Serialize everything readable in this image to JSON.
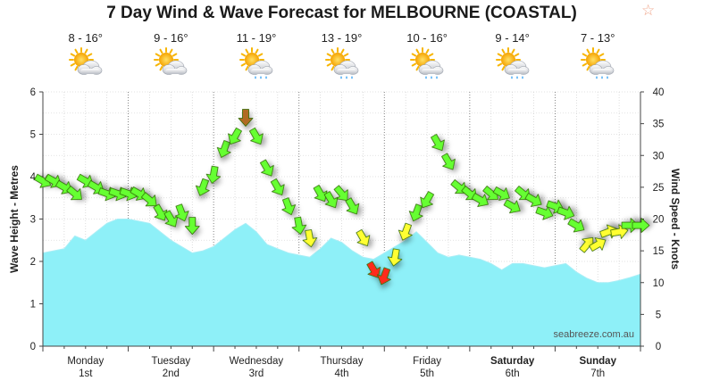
{
  "title": "7 Day Wind & Wave Forecast for MELBOURNE (COASTAL)",
  "star_icon": "star-outline-icon",
  "days": [
    {
      "name": "Monday",
      "date": "1st",
      "temp": "8 - 16°",
      "icon": "partly-cloudy-icon",
      "bold": false
    },
    {
      "name": "Tuesday",
      "date": "2nd",
      "temp": "9 - 16°",
      "icon": "partly-cloudy-icon",
      "bold": false
    },
    {
      "name": "Wednesday",
      "date": "3rd",
      "temp": "11 - 19°",
      "icon": "showers-icon",
      "bold": false
    },
    {
      "name": "Thursday",
      "date": "4th",
      "temp": "13 - 19°",
      "icon": "showers-icon",
      "bold": false
    },
    {
      "name": "Friday",
      "date": "5th",
      "temp": "10 - 16°",
      "icon": "showers-icon",
      "bold": false
    },
    {
      "name": "Saturday",
      "date": "6th",
      "temp": "9 - 14°",
      "icon": "showers-icon",
      "bold": true
    },
    {
      "name": "Sunday",
      "date": "7th",
      "temp": "7 - 13°",
      "icon": "showers-icon",
      "bold": true
    }
  ],
  "watermark": "seabreeze.com.au",
  "colors": {
    "wave_fill": "#8ef0f8",
    "wave_line": "#a8eef6",
    "wind_light": "#66ff33",
    "wind_moderate": "#ffff33",
    "wind_strong": "#ff2a1a",
    "wind_peak": "#b06a20"
  },
  "chart_data": {
    "type": "area",
    "title": "7 Day Wind & Wave Forecast for MELBOURNE (COASTAL)",
    "x_unit": "hours",
    "xlim": [
      0,
      168
    ],
    "left_axis": {
      "label": "Wave Height - Metres",
      "ticks": [
        "0",
        "1",
        "2",
        "3",
        "4",
        "5",
        "6"
      ],
      "ylim": [
        0,
        6
      ]
    },
    "right_axis": {
      "label": "Wind Speed - Knots",
      "ticks": [
        "0",
        "5",
        "10",
        "15",
        "20",
        "25",
        "30",
        "35",
        "40"
      ],
      "ylim": [
        0,
        40
      ]
    },
    "series": [
      {
        "name": "Wave Height",
        "unit": "m",
        "x": [
          0,
          6,
          9,
          12,
          15,
          18,
          21,
          24,
          30,
          33,
          36,
          42,
          45,
          48,
          54,
          57,
          60,
          63,
          66,
          69,
          72,
          75,
          78,
          81,
          84,
          87,
          90,
          93,
          96,
          99,
          102,
          105,
          108,
          111,
          114,
          117,
          120,
          123,
          126,
          129,
          132,
          135,
          138,
          141,
          144,
          147,
          150,
          153,
          156,
          159,
          162,
          165,
          168
        ],
        "values": [
          2.2,
          2.3,
          2.6,
          2.5,
          2.7,
          2.9,
          3.0,
          3.0,
          2.9,
          2.7,
          2.5,
          2.2,
          2.25,
          2.35,
          2.75,
          2.9,
          2.7,
          2.4,
          2.3,
          2.2,
          2.15,
          2.1,
          2.3,
          2.55,
          2.45,
          2.25,
          2.1,
          2.05,
          2.2,
          2.35,
          2.5,
          2.7,
          2.45,
          2.2,
          2.1,
          2.15,
          2.1,
          2.05,
          1.95,
          1.8,
          1.95,
          1.95,
          1.9,
          1.85,
          1.9,
          1.95,
          1.75,
          1.6,
          1.5,
          1.5,
          1.55,
          1.62,
          1.7
        ]
      },
      {
        "name": "Wind Speed",
        "unit": "knots",
        "x": [
          0,
          3,
          6,
          9,
          12,
          15,
          18,
          21,
          24,
          27,
          30,
          33,
          36,
          39,
          42,
          45,
          48,
          51,
          54,
          57,
          60,
          63,
          66,
          69,
          72,
          75,
          78,
          81,
          84,
          87,
          90,
          93,
          96,
          99,
          102,
          105,
          108,
          111,
          114,
          117,
          120,
          123,
          126,
          129,
          132,
          135,
          138,
          141,
          144,
          147,
          150,
          153,
          156,
          159,
          162,
          165,
          168
        ],
        "values": [
          26,
          26,
          25,
          24,
          26,
          25,
          24,
          24,
          24,
          24,
          23,
          21,
          20,
          21,
          19,
          25,
          27,
          31,
          33,
          36,
          33,
          28,
          25,
          22,
          19,
          17,
          24,
          23,
          24,
          22,
          17,
          12,
          11,
          14,
          18,
          21,
          23,
          32,
          29,
          25,
          24,
          23,
          24,
          24,
          22,
          24,
          23,
          21,
          22,
          21,
          19,
          16,
          16,
          18,
          18,
          19,
          19
        ],
        "direction_deg": [
          300,
          300,
          300,
          310,
          300,
          300,
          290,
          290,
          290,
          300,
          310,
          330,
          330,
          340,
          0,
          20,
          10,
          20,
          30,
          0,
          330,
          330,
          330,
          340,
          350,
          350,
          330,
          330,
          320,
          330,
          330,
          330,
          20,
          10,
          20,
          20,
          30,
          330,
          330,
          310,
          310,
          300,
          310,
          300,
          300,
          310,
          300,
          290,
          290,
          290,
          300,
          220,
          240,
          250,
          260,
          270,
          270
        ]
      }
    ],
    "legend": "none"
  }
}
